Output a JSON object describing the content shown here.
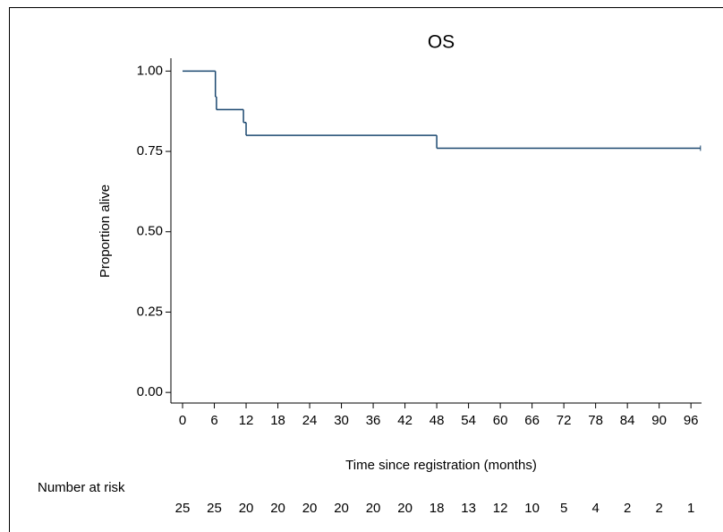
{
  "chart_data": {
    "type": "step",
    "title": "OS",
    "x_label": "Time since registration (months)",
    "y_label": "Proportion alive",
    "x": [
      0,
      6.2,
      6.4,
      11.5,
      12,
      48,
      97.8
    ],
    "series": [
      {
        "color": "#1a476f",
        "values": [
          1.0,
          0.92,
          0.88,
          0.84,
          0.8,
          0.76,
          0.76
        ]
      }
    ],
    "xlim": [
      -2.2,
      98
    ],
    "ylim": [
      -0.033,
      1.04
    ],
    "xticks": [
      0,
      6,
      12,
      18,
      24,
      30,
      36,
      42,
      48,
      54,
      60,
      66,
      72,
      78,
      84,
      90,
      96
    ],
    "yticks": [
      {
        "value": 0,
        "label": "0.00"
      },
      {
        "value": 0.25,
        "label": "0.25"
      },
      {
        "value": 0.5,
        "label": "0.50"
      },
      {
        "value": 0.75,
        "label": "0.75"
      },
      {
        "value": 1,
        "label": "1.00"
      }
    ],
    "risk_table": {
      "label": "Number at risk",
      "values": [
        25,
        25,
        20,
        20,
        20,
        20,
        20,
        20,
        18,
        13,
        12,
        10,
        5,
        4,
        2,
        2,
        1
      ]
    }
  }
}
